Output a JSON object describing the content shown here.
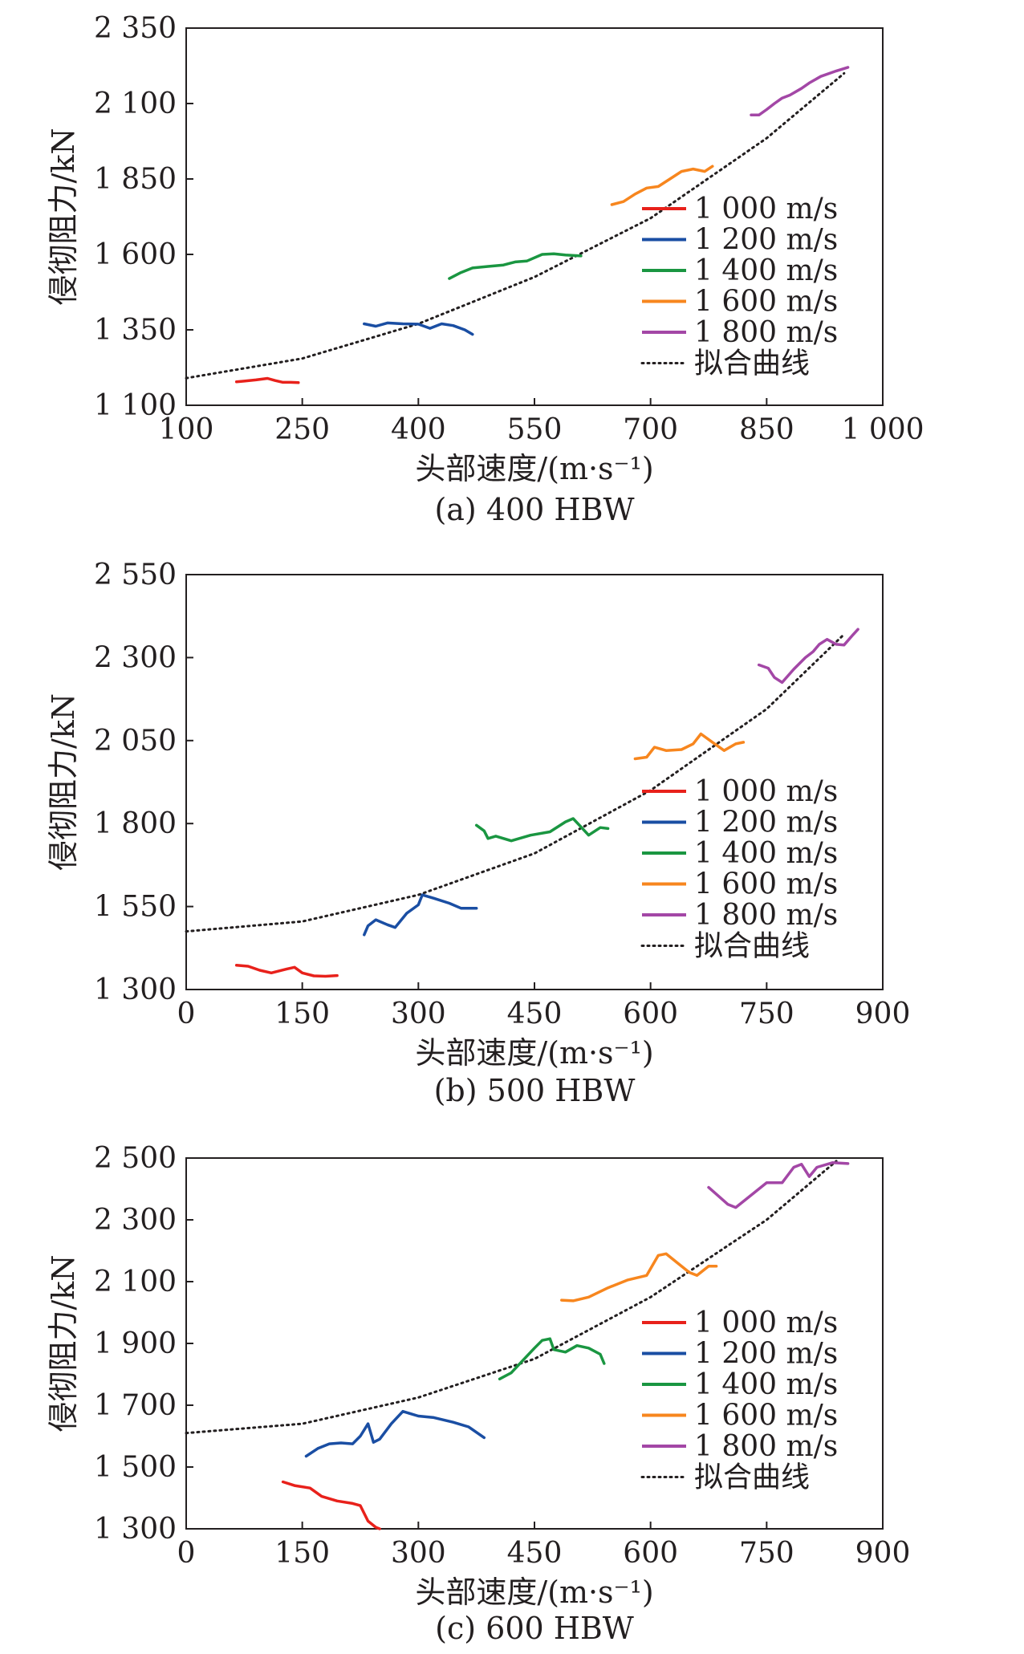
{
  "charts": [
    {
      "type": "line",
      "caption": "(a) 400 HBW",
      "xlabel": "头部速度/(m·s⁻¹)",
      "ylabel": "侵彻阻力/kN",
      "xlim": [
        100,
        1000
      ],
      "ylim": [
        1100,
        2350
      ],
      "xticks": [
        100,
        250,
        400,
        550,
        700,
        850,
        1000
      ],
      "yticks": [
        1100,
        1350,
        1600,
        1850,
        2100,
        2350
      ],
      "xtick_labels": [
        "100",
        "250",
        "400",
        "550",
        "700",
        "850",
        "1 000"
      ],
      "ytick_labels": [
        "1 100",
        "1 350",
        "1 600",
        "1 850",
        "2 100",
        "2 350"
      ],
      "legend": [
        "1 000 m/s",
        "1 200 m/s",
        "1 400 m/s",
        "1 600 m/s",
        "1 800 m/s",
        "拟合曲线"
      ],
      "legend_position": "right",
      "series": [
        {
          "name": "1 000 m/s",
          "color": "#e8211b",
          "x": [
            165,
            175,
            190,
            205,
            215,
            225,
            235,
            245
          ],
          "y": [
            1178,
            1180,
            1184,
            1189,
            1182,
            1176,
            1176,
            1175
          ]
        },
        {
          "name": "1 200 m/s",
          "color": "#1a4ea3",
          "x": [
            330,
            345,
            360,
            380,
            400,
            415,
            430,
            445,
            460,
            470
          ],
          "y": [
            1370,
            1362,
            1373,
            1370,
            1369,
            1355,
            1370,
            1364,
            1350,
            1335
          ]
        },
        {
          "name": "1 400 m/s",
          "color": "#1a9641",
          "x": [
            440,
            455,
            470,
            490,
            510,
            525,
            540,
            560,
            575,
            590,
            610
          ],
          "y": [
            1520,
            1540,
            1555,
            1560,
            1565,
            1575,
            1578,
            1600,
            1602,
            1598,
            1595
          ]
        },
        {
          "name": "1 600 m/s",
          "color": "#f7861e",
          "x": [
            650,
            665,
            680,
            695,
            710,
            725,
            740,
            755,
            770,
            780
          ],
          "y": [
            1765,
            1775,
            1800,
            1820,
            1825,
            1850,
            1875,
            1883,
            1875,
            1892
          ]
        },
        {
          "name": "1 800 m/s",
          "color": "#a347a6",
          "x": [
            830,
            840,
            850,
            860,
            870,
            880,
            895,
            905,
            920,
            940,
            955
          ],
          "y": [
            2062,
            2062,
            2080,
            2100,
            2118,
            2128,
            2150,
            2168,
            2190,
            2208,
            2220
          ]
        }
      ],
      "fit": {
        "name": "拟合曲线",
        "x": [
          100,
          250,
          400,
          550,
          700,
          850,
          950
        ],
        "y": [
          1190,
          1255,
          1370,
          1525,
          1720,
          1985,
          2200
        ]
      }
    },
    {
      "type": "line",
      "caption": "(b) 500 HBW",
      "xlabel": "头部速度/(m·s⁻¹)",
      "ylabel": "侵彻阻力/kN",
      "xlim": [
        0,
        900
      ],
      "ylim": [
        1300,
        2550
      ],
      "xticks": [
        0,
        150,
        300,
        450,
        600,
        750,
        900
      ],
      "yticks": [
        1300,
        1550,
        1800,
        2050,
        2300,
        2550
      ],
      "xtick_labels": [
        "0",
        "150",
        "300",
        "450",
        "600",
        "750",
        "900"
      ],
      "ytick_labels": [
        "1 300",
        "1 550",
        "1 800",
        "2 050",
        "2 300",
        "2 550"
      ],
      "legend": [
        "1 000 m/s",
        "1 200 m/s",
        "1 400 m/s",
        "1 600 m/s",
        "1 800 m/s",
        "拟合曲线"
      ],
      "legend_position": "right",
      "series": [
        {
          "name": "1 000 m/s",
          "color": "#e8211b",
          "x": [
            65,
            80,
            95,
            110,
            130,
            140,
            150,
            165,
            180,
            195
          ],
          "y": [
            1373,
            1370,
            1358,
            1350,
            1362,
            1367,
            1350,
            1341,
            1340,
            1342
          ]
        },
        {
          "name": "1 200 m/s",
          "color": "#1a4ea3",
          "x": [
            230,
            235,
            245,
            260,
            270,
            285,
            300,
            305,
            320,
            340,
            355,
            375
          ],
          "y": [
            1465,
            1492,
            1510,
            1495,
            1487,
            1530,
            1555,
            1585,
            1575,
            1560,
            1545,
            1545
          ]
        },
        {
          "name": "1 400 m/s",
          "color": "#1a9641",
          "x": [
            375,
            385,
            390,
            400,
            420,
            445,
            470,
            490,
            500,
            510,
            520,
            535,
            545
          ],
          "y": [
            1795,
            1778,
            1755,
            1762,
            1748,
            1765,
            1775,
            1805,
            1815,
            1790,
            1765,
            1788,
            1785
          ]
        },
        {
          "name": "1 600 m/s",
          "color": "#f7861e",
          "x": [
            580,
            595,
            605,
            620,
            640,
            655,
            665,
            680,
            695,
            710,
            720
          ],
          "y": [
            1995,
            2000,
            2030,
            2020,
            2023,
            2040,
            2070,
            2045,
            2020,
            2040,
            2045
          ]
        },
        {
          "name": "1 800 m/s",
          "color": "#a347a6",
          "x": [
            740,
            752,
            760,
            770,
            785,
            800,
            810,
            818,
            828,
            840,
            850,
            862,
            868
          ],
          "y": [
            2278,
            2268,
            2240,
            2225,
            2265,
            2300,
            2318,
            2340,
            2355,
            2340,
            2338,
            2370,
            2385
          ]
        }
      ],
      "fit": {
        "name": "拟合曲线",
        "x": [
          0,
          150,
          300,
          450,
          600,
          750,
          850
        ],
        "y": [
          1475,
          1505,
          1585,
          1710,
          1900,
          2145,
          2370
        ]
      }
    },
    {
      "type": "line",
      "caption": "(c) 600 HBW",
      "xlabel": "头部速度/(m·s⁻¹)",
      "ylabel": "侵彻阻力/kN",
      "xlim": [
        0,
        900
      ],
      "ylim": [
        1300,
        2500
      ],
      "xticks": [
        0,
        150,
        300,
        450,
        600,
        750,
        900
      ],
      "yticks": [
        1300,
        1500,
        1700,
        1900,
        2100,
        2300,
        2500
      ],
      "xtick_labels": [
        "0",
        "150",
        "300",
        "450",
        "600",
        "750",
        "900"
      ],
      "ytick_labels": [
        "1 300",
        "1 500",
        "1 700",
        "1 900",
        "2 100",
        "2 300",
        "2 500"
      ],
      "legend": [
        "1 000 m/s",
        "1 200 m/s",
        "1 400 m/s",
        "1 600 m/s",
        "1 800 m/s",
        "拟合曲线"
      ],
      "legend_position": "right",
      "series": [
        {
          "name": "1 000 m/s",
          "color": "#e8211b",
          "x": [
            125,
            140,
            160,
            175,
            195,
            215,
            225,
            235,
            245,
            250
          ],
          "y": [
            1452,
            1440,
            1432,
            1405,
            1390,
            1382,
            1375,
            1325,
            1305,
            1300
          ]
        },
        {
          "name": "1 200 m/s",
          "color": "#1a4ea3",
          "x": [
            155,
            170,
            185,
            200,
            215,
            225,
            235,
            242,
            250,
            265,
            280,
            300,
            320,
            345,
            365,
            385
          ],
          "y": [
            1535,
            1560,
            1575,
            1578,
            1575,
            1600,
            1640,
            1580,
            1590,
            1640,
            1680,
            1665,
            1660,
            1645,
            1630,
            1595
          ]
        },
        {
          "name": "1 400 m/s",
          "color": "#1a9641",
          "x": [
            405,
            420,
            435,
            450,
            460,
            470,
            475,
            490,
            505,
            520,
            535,
            540
          ],
          "y": [
            1785,
            1805,
            1845,
            1885,
            1910,
            1915,
            1880,
            1872,
            1893,
            1885,
            1865,
            1835
          ]
        },
        {
          "name": "1 600 m/s",
          "color": "#f7861e",
          "x": [
            485,
            500,
            520,
            545,
            570,
            595,
            610,
            620,
            635,
            650,
            660,
            675,
            685
          ],
          "y": [
            2040,
            2038,
            2050,
            2080,
            2105,
            2120,
            2185,
            2190,
            2160,
            2130,
            2120,
            2150,
            2150
          ]
        },
        {
          "name": "1 800 m/s",
          "color": "#a347a6",
          "x": [
            675,
            690,
            700,
            710,
            730,
            750,
            770,
            785,
            795,
            805,
            815,
            835,
            855
          ],
          "y": [
            2405,
            2372,
            2350,
            2340,
            2380,
            2420,
            2420,
            2470,
            2480,
            2440,
            2470,
            2485,
            2482
          ]
        }
      ],
      "fit": {
        "name": "拟合曲线",
        "x": [
          0,
          150,
          300,
          450,
          600,
          750,
          840
        ],
        "y": [
          1610,
          1640,
          1725,
          1850,
          2050,
          2300,
          2490
        ]
      }
    }
  ]
}
